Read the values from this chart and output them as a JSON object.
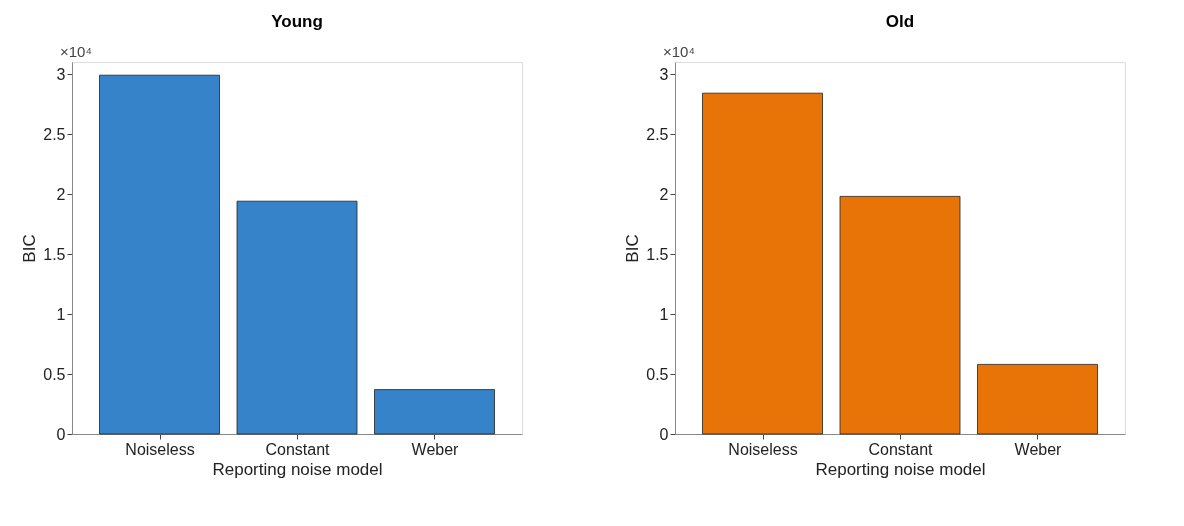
{
  "chart_data": [
    {
      "type": "bar",
      "title": "Young",
      "xlabel": "Reporting noise model",
      "ylabel": "BIC",
      "categories": [
        "Noiseless",
        "Constant",
        "Weber"
      ],
      "values": [
        2.99,
        1.94,
        0.37
      ],
      "color": "#3683c9",
      "ylim": [
        0,
        3.1
      ],
      "yticks": [
        0,
        0.5,
        1,
        1.5,
        2,
        2.5,
        3
      ],
      "grid": false,
      "annotations": [
        "×10⁴"
      ]
    },
    {
      "type": "bar",
      "title": "Old",
      "xlabel": "Reporting noise model",
      "ylabel": "BIC",
      "categories": [
        "Noiseless",
        "Constant",
        "Weber"
      ],
      "values": [
        2.84,
        1.98,
        0.58
      ],
      "color": "#e87407",
      "ylim": [
        0,
        3.1
      ],
      "yticks": [
        0,
        0.5,
        1,
        1.5,
        2,
        2.5,
        3
      ],
      "grid": false,
      "annotations": [
        "×10⁴"
      ]
    }
  ]
}
